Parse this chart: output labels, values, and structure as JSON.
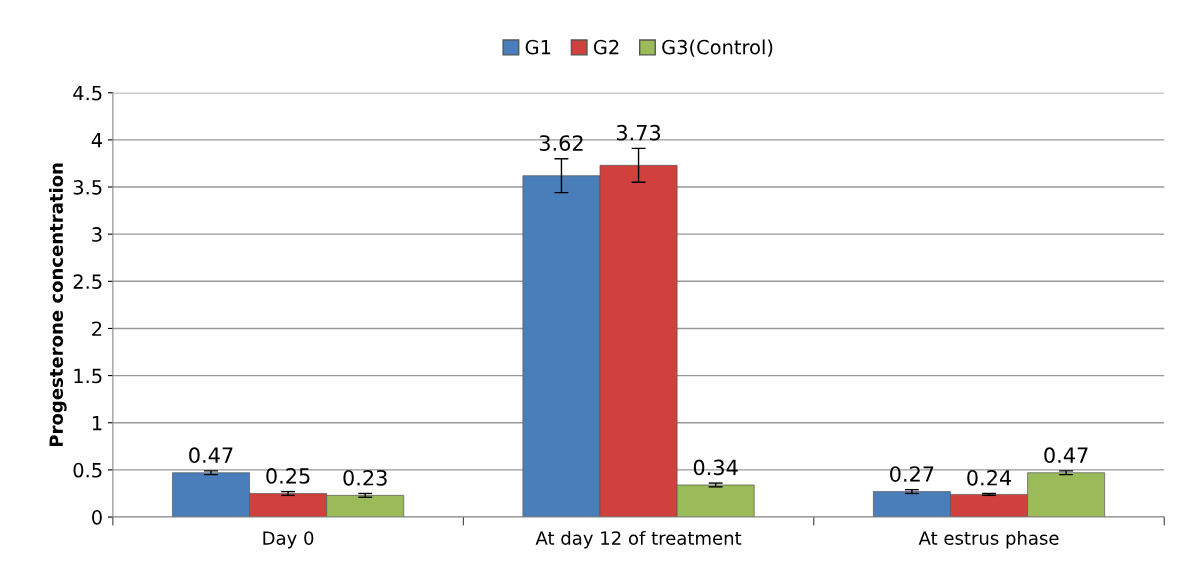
{
  "chart_data": {
    "type": "bar",
    "ylabel": "Progesterone concentration",
    "categories": [
      "Day 0",
      "At day 12 of treatment",
      "At estrus phase"
    ],
    "series": [
      {
        "name": "G1",
        "color": "#4a7ebb",
        "values": [
          0.47,
          3.62,
          0.27
        ],
        "errors": [
          0.02,
          0.18,
          0.02
        ]
      },
      {
        "name": "G2",
        "color": "#d0413e",
        "values": [
          0.25,
          3.73,
          0.24
        ],
        "errors": [
          0.02,
          0.18,
          0.01
        ]
      },
      {
        "name": "G3(Control)",
        "color": "#9bbb59",
        "values": [
          0.23,
          0.34,
          0.47
        ],
        "errors": [
          0.02,
          0.02,
          0.02
        ]
      }
    ],
    "ylim": [
      0,
      4.5
    ],
    "yticks": [
      0,
      0.5,
      1,
      1.5,
      2,
      2.5,
      3,
      3.5,
      4,
      4.5
    ],
    "grid": "y",
    "legend": "top",
    "data_labels": true
  }
}
